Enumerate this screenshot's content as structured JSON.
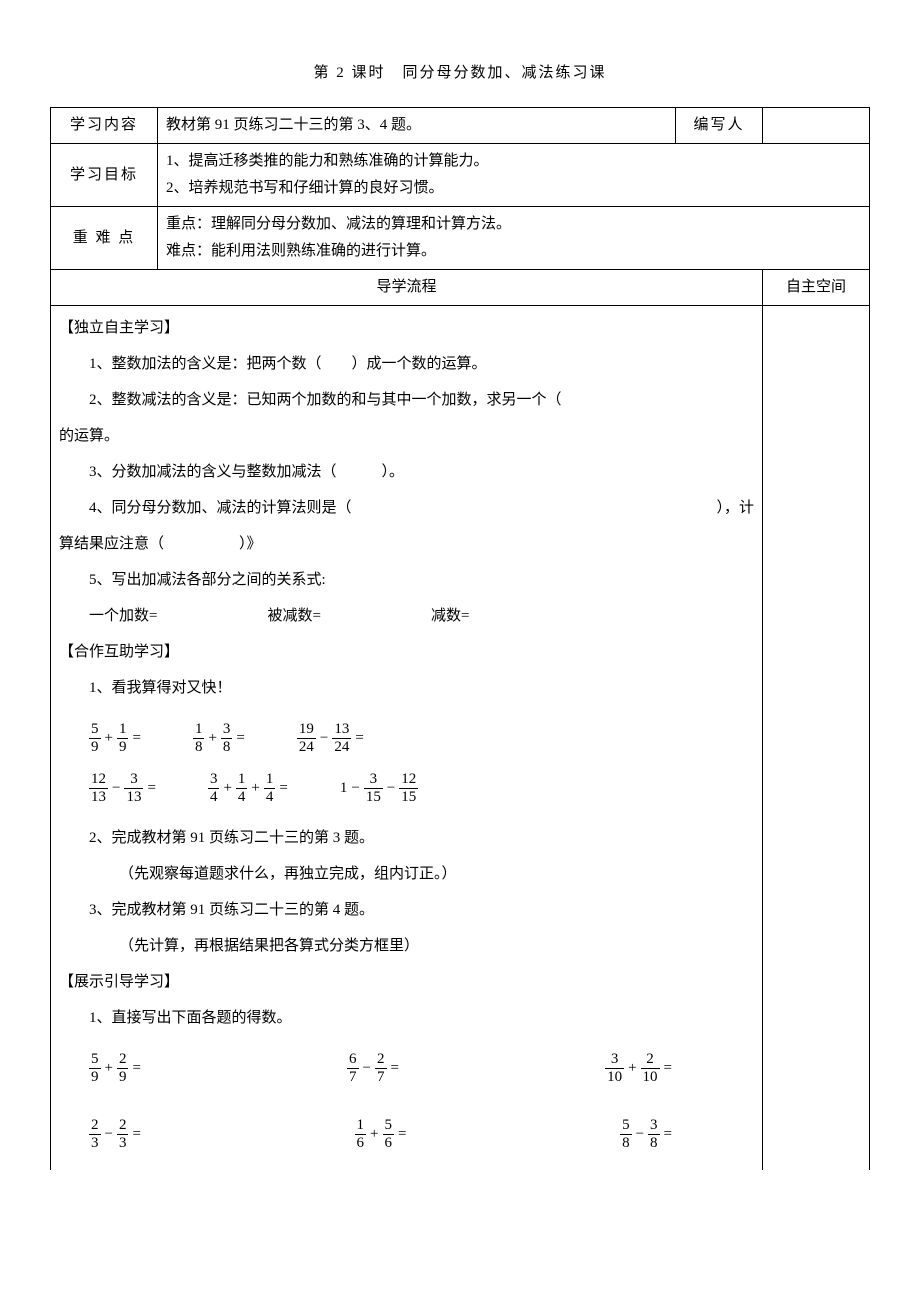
{
  "title": "第 2 课时　同分母分数加、减法练习课",
  "rows": {
    "r1_label": "学习内容",
    "r1_text": "教材第 91 页练习二十三的第 3、4 题。",
    "r1_author_label": "编写人",
    "r2_label": "学习目标",
    "r2_line1": "1、提高迁移类推的能力和熟练准确的计算能力。",
    "r2_line2": "2、培养规范书写和仔细计算的良好习惯。",
    "r3_label": "重 难 点",
    "r3_line1": "重点：理解同分母分数加、减法的算理和计算方法。",
    "r3_line2": "难点：能利用法则熟练准确的进行计算。",
    "flow_header": "导学流程",
    "side_header": "自主空间"
  },
  "body": {
    "h1": "【独立自主学习】",
    "p1": "1、整数加法的含义是：把两个数（　　）成一个数的运算。",
    "p2": "2、整数减法的含义是：已知两个加数的和与其中一个加数，求另一个（",
    "p2b": "的运算。",
    "p3": "3、分数加减法的含义与整数加减法（　　　）。",
    "p4a": "4、同分母分数加、减法的计算法则是（",
    "p4b": "），计",
    "p4c": "算结果应注意（　　　　　）》",
    "p5": "5、写出加减法各部分之间的关系式:",
    "p5a": "一个加数=",
    "p5b": "被减数=",
    "p5c": "减数=",
    "h2": "【合作互助学习】",
    "q1": "1、看我算得对又快！",
    "q2": "2、完成教材第 91 页练习二十三的第 3 题。",
    "q2note": "（先观察每道题求什么，再独立完成，组内订正。）",
    "q3": "3、完成教材第 91 页练习二十三的第 4 题。",
    "q3note": "（先计算，再根据结果把各算式分类方框里）",
    "h3": "【展示引导学习】",
    "s1": "1、直接写出下面各题的得数。"
  },
  "fracs": {
    "setA": [
      {
        "t": "add",
        "a": [
          5,
          9
        ],
        "b": [
          1,
          9
        ]
      },
      {
        "t": "add",
        "a": [
          1,
          8
        ],
        "b": [
          3,
          8
        ]
      },
      {
        "t": "sub",
        "a": [
          19,
          24
        ],
        "b": [
          13,
          24
        ]
      }
    ],
    "setB": [
      {
        "t": "sub",
        "a": [
          12,
          13
        ],
        "b": [
          3,
          13
        ]
      },
      {
        "t": "add3",
        "a": [
          3,
          4
        ],
        "b": [
          1,
          4
        ],
        "c": [
          1,
          4
        ]
      },
      {
        "t": "onesub2",
        "a": [
          3,
          15
        ],
        "b": [
          12,
          15
        ]
      }
    ],
    "setC": [
      {
        "t": "add",
        "a": [
          5,
          9
        ],
        "b": [
          2,
          9
        ]
      },
      {
        "t": "sub",
        "a": [
          6,
          7
        ],
        "b": [
          2,
          7
        ]
      },
      {
        "t": "add",
        "a": [
          3,
          10
        ],
        "b": [
          2,
          10
        ]
      }
    ],
    "setD": [
      {
        "t": "sub",
        "a": [
          2,
          3
        ],
        "b": [
          2,
          3
        ]
      },
      {
        "t": "add",
        "a": [
          1,
          6
        ],
        "b": [
          5,
          6
        ]
      },
      {
        "t": "sub",
        "a": [
          5,
          8
        ],
        "b": [
          3,
          8
        ]
      }
    ]
  },
  "style": {
    "border_color": "#000000",
    "font_family": "SimSun",
    "body_fontsize": 15,
    "title_fontsize": 15
  }
}
